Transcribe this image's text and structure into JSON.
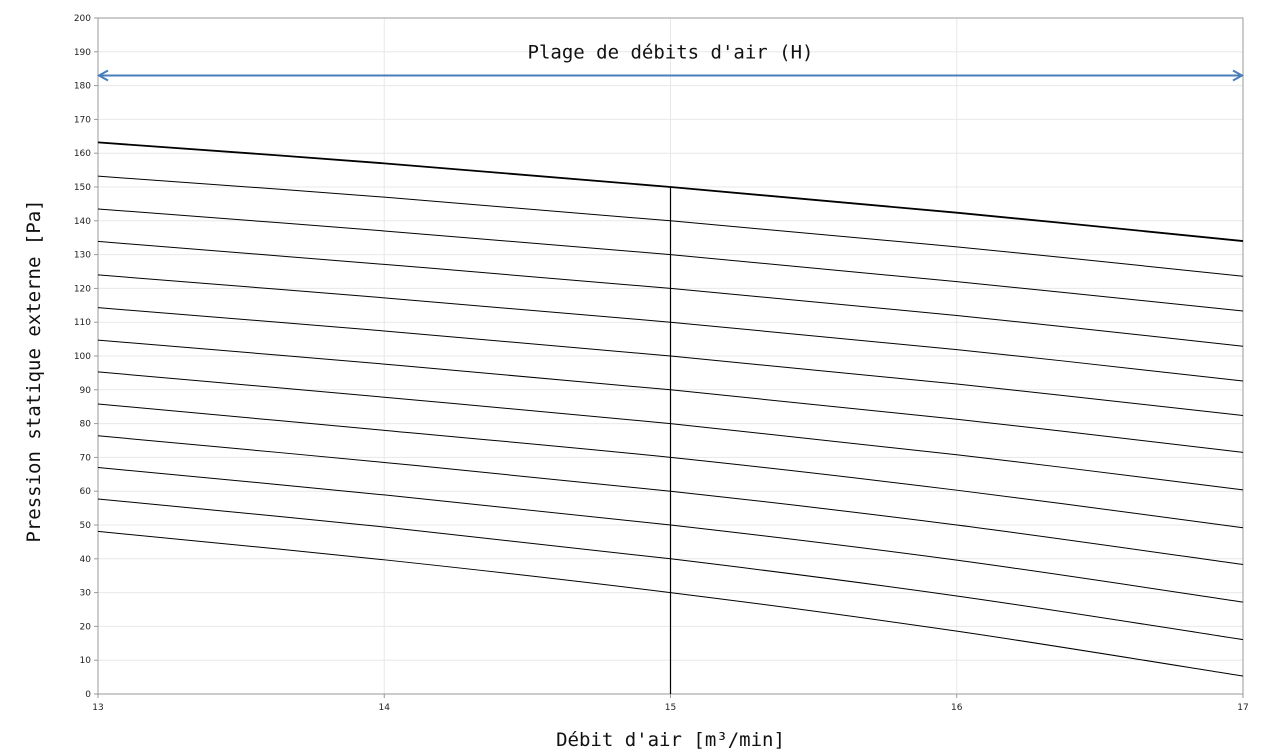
{
  "chart_data": {
    "type": "line",
    "title": "",
    "xlabel": "Débit d'air [m³/min]",
    "ylabel": "Pression statique externe [Pa]",
    "xlim": [
      13,
      17
    ],
    "ylim": [
      0,
      200
    ],
    "x_ticks": [
      "13",
      "14",
      "15",
      "16",
      "17"
    ],
    "y_ticks": [
      "0",
      "10",
      "20",
      "30",
      "40",
      "50",
      "60",
      "70",
      "80",
      "90",
      "100",
      "110",
      "120",
      "130",
      "140",
      "150",
      "160",
      "170",
      "180",
      "190",
      "200"
    ],
    "grid": true,
    "legend": "none",
    "x": [
      13,
      14,
      15,
      16,
      17
    ],
    "series": [
      {
        "values": [
          163.2,
          157.0,
          150.0,
          142.4,
          134.0
        ],
        "bold": true
      },
      {
        "values": [
          153.2,
          147.0,
          140.0,
          132.3,
          123.6
        ]
      },
      {
        "values": [
          143.5,
          137.0,
          130.0,
          122.0,
          113.3
        ]
      },
      {
        "values": [
          133.9,
          127.1,
          120.0,
          112.0,
          102.9
        ]
      },
      {
        "values": [
          124.0,
          117.2,
          110.0,
          101.9,
          92.6
        ]
      },
      {
        "values": [
          114.3,
          107.4,
          100.0,
          91.7,
          82.4
        ]
      },
      {
        "values": [
          104.7,
          97.6,
          90.0,
          81.3,
          71.5
        ]
      },
      {
        "values": [
          95.3,
          87.8,
          80.0,
          70.8,
          60.4
        ]
      },
      {
        "values": [
          85.8,
          78.0,
          70.0,
          60.3,
          49.2
        ]
      },
      {
        "values": [
          76.4,
          68.5,
          60.0,
          50.0,
          38.3
        ]
      },
      {
        "values": [
          67.0,
          58.9,
          50.0,
          39.6,
          27.2
        ]
      },
      {
        "values": [
          57.7,
          49.4,
          40.0,
          29.0,
          16.1
        ]
      },
      {
        "values": [
          48.1,
          39.7,
          30.0,
          18.6,
          5.3
        ]
      }
    ],
    "vertical_marker": {
      "x": 15,
      "y_top": 150
    },
    "range_arrow": {
      "label": "Plage de débits d'air (H)",
      "x_start": 13,
      "x_end": 17,
      "y": 183,
      "color": "#4a7ebb"
    },
    "colors": {
      "line": "#000000",
      "grid": "#e8e8e8",
      "axis": "#999999",
      "arrow": "#4a7ebb"
    }
  }
}
